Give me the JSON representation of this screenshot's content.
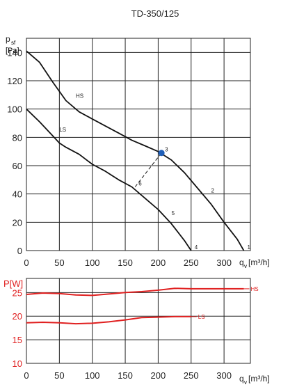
{
  "chart_data": [
    {
      "type": "line",
      "title": "TD-350/125",
      "ylabel_main": "p",
      "ylabel_sub": "sf",
      "ylabel_unit": "[Pa]",
      "xlabel_main": "q",
      "xlabel_sub": "v",
      "xlabel_unit": "[m³/h]",
      "xlim": [
        0,
        340
      ],
      "ylim": [
        0,
        150
      ],
      "x_ticks": [
        0,
        50,
        100,
        150,
        200,
        250,
        300
      ],
      "y_ticks": [
        0,
        20,
        40,
        60,
        80,
        100,
        120,
        140
      ],
      "grid": true,
      "series": [
        {
          "name": "HS",
          "color": "#111111",
          "points": [
            [
              0,
              141
            ],
            [
              20,
              133
            ],
            [
              40,
              119
            ],
            [
              60,
              106
            ],
            [
              80,
              98
            ],
            [
              100,
              93
            ],
            [
              120,
              88
            ],
            [
              140,
              83
            ],
            [
              160,
              78
            ],
            [
              180,
              74
            ],
            [
              200,
              70
            ],
            [
              220,
              64
            ],
            [
              240,
              55
            ],
            [
              260,
              44
            ],
            [
              280,
              33
            ],
            [
              300,
              20
            ],
            [
              320,
              8
            ],
            [
              330,
              0
            ]
          ]
        },
        {
          "name": "LS",
          "color": "#111111",
          "points": [
            [
              0,
              100
            ],
            [
              20,
              91
            ],
            [
              40,
              81
            ],
            [
              50,
              76
            ],
            [
              60,
              73
            ],
            [
              80,
              68
            ],
            [
              100,
              61
            ],
            [
              120,
              56
            ],
            [
              140,
              50
            ],
            [
              160,
              45
            ],
            [
              180,
              37
            ],
            [
              200,
              29
            ],
            [
              220,
              19
            ],
            [
              240,
              7
            ],
            [
              250,
              0
            ]
          ]
        }
      ],
      "points": [
        {
          "label": "1",
          "x": 330,
          "y": 0
        },
        {
          "label": "2",
          "x": 275,
          "y": 40
        },
        {
          "label": "3",
          "x": 205,
          "y": 69,
          "highlight": true,
          "color": "#1f5fb8"
        },
        {
          "label": "4",
          "x": 250,
          "y": 0
        },
        {
          "label": "5",
          "x": 215,
          "y": 24
        },
        {
          "label": "6",
          "x": 165,
          "y": 45
        }
      ],
      "dashed_line": {
        "from": [
          165,
          45
        ],
        "to": [
          205,
          69
        ]
      },
      "curve_labels": [
        {
          "text": "HS",
          "x": 75,
          "y": 108
        },
        {
          "text": "LS",
          "x": 50,
          "y": 84
        }
      ]
    },
    {
      "type": "line",
      "ylabel": "P[W]",
      "xlabel_main": "q",
      "xlabel_sub": "v",
      "xlabel_unit": "[m³/h]",
      "xlim": [
        0,
        340
      ],
      "ylim": [
        10,
        28
      ],
      "x_ticks": [
        0,
        50,
        100,
        150,
        200,
        250,
        300
      ],
      "y_ticks": [
        10,
        15,
        20,
        25
      ],
      "grid": true,
      "series": [
        {
          "name": "HS",
          "color": "#e02020",
          "points": [
            [
              0,
              24.6
            ],
            [
              25,
              24.9
            ],
            [
              50,
              24.8
            ],
            [
              75,
              24.5
            ],
            [
              100,
              24.4
            ],
            [
              125,
              24.7
            ],
            [
              150,
              25.0
            ],
            [
              175,
              25.2
            ],
            [
              200,
              25.5
            ],
            [
              225,
              25.9
            ],
            [
              250,
              25.8
            ],
            [
              275,
              25.8
            ],
            [
              300,
              25.8
            ],
            [
              330,
              25.8
            ]
          ]
        },
        {
          "name": "LS",
          "color": "#e02020",
          "points": [
            [
              0,
              18.6
            ],
            [
              25,
              18.7
            ],
            [
              50,
              18.6
            ],
            [
              75,
              18.4
            ],
            [
              100,
              18.5
            ],
            [
              125,
              18.8
            ],
            [
              150,
              19.2
            ],
            [
              175,
              19.7
            ],
            [
              200,
              19.8
            ],
            [
              225,
              19.9
            ],
            [
              250,
              19.9
            ]
          ]
        }
      ]
    }
  ]
}
